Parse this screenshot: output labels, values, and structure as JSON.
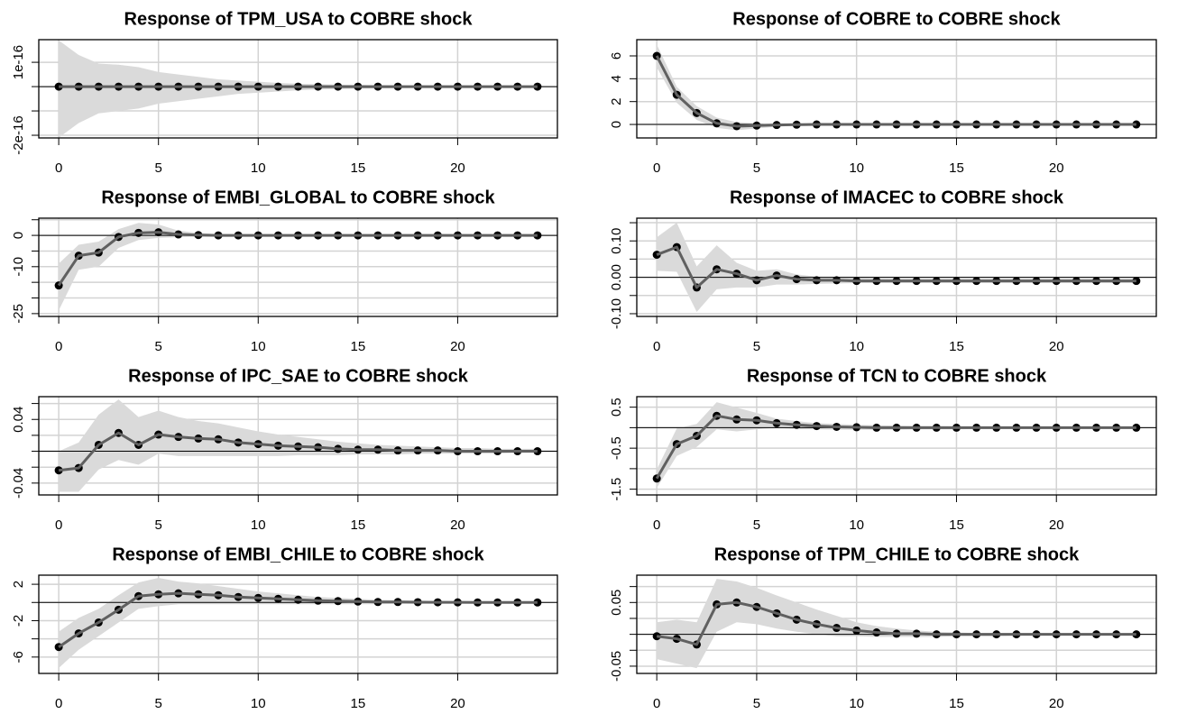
{
  "chart_data": [
    {
      "type": "line",
      "title": "Response of TPM_USA to COBRE shock",
      "x": [
        0,
        1,
        2,
        3,
        4,
        5,
        6,
        7,
        8,
        9,
        10,
        11,
        12,
        13,
        14,
        15,
        16,
        17,
        18,
        19,
        20,
        21,
        22,
        23,
        24
      ],
      "series": [
        {
          "color": "#606060",
          "point_color": "#000000",
          "values": [
            0,
            0,
            0,
            0,
            0,
            0,
            0,
            0,
            0,
            0,
            0,
            0,
            0,
            0,
            0,
            0,
            0,
            0,
            0,
            0,
            0,
            0,
            0,
            0,
            0
          ]
        }
      ],
      "upper": [
        1.9e-16,
        1.3e-16,
        9.5e-17,
        9e-17,
        8e-17,
        6e-17,
        5e-17,
        4e-17,
        3e-17,
        2.5e-17,
        2e-17,
        1.5e-17,
        1.2e-17,
        1e-17,
        8e-18,
        7e-18,
        6e-18,
        5e-18,
        4e-18,
        4e-18,
        3e-18,
        3e-18,
        3e-18,
        2e-18,
        2e-18
      ],
      "lower": [
        -2.1e-16,
        -1.5e-16,
        -1.1e-16,
        -1e-16,
        -9e-17,
        -7e-17,
        -6e-17,
        -5e-17,
        -4e-17,
        -3e-17,
        -2.5e-17,
        -2e-17,
        -1.5e-17,
        -1.2e-17,
        -1e-17,
        -8e-18,
        -7e-18,
        -6e-18,
        -5e-18,
        -4e-18,
        -4e-18,
        -3e-18,
        -3e-18,
        -3e-18,
        -2e-18
      ],
      "band_color": "#dadada",
      "hline": 0,
      "xlim": [
        -1,
        25
      ],
      "xticks": [
        0,
        5,
        10,
        15,
        20
      ],
      "ylim": [
        -2.11e-16,
        1.93e-16
      ],
      "yticks": [
        {
          "value": 1e-16,
          "label": "1e-16"
        },
        {
          "value": 0,
          "label": null
        },
        {
          "value": -1e-16,
          "label": null
        },
        {
          "value": -2e-16,
          "label": "-2e-16"
        }
      ],
      "grid": true
    },
    {
      "type": "line",
      "title": "Response of COBRE to COBRE shock",
      "x": [
        0,
        1,
        2,
        3,
        4,
        5,
        6,
        7,
        8,
        9,
        10,
        11,
        12,
        13,
        14,
        15,
        16,
        17,
        18,
        19,
        20,
        21,
        22,
        23,
        24
      ],
      "series": [
        {
          "color": "#606060",
          "point_color": "#000000",
          "values": [
            6,
            2.6,
            1.0,
            0.1,
            -0.15,
            -0.1,
            -0.05,
            -0.02,
            0,
            0,
            0,
            0,
            0,
            0,
            0,
            0,
            0,
            0,
            0,
            0,
            0,
            0,
            0,
            0,
            0
          ]
        }
      ],
      "upper": [
        7.0,
        3.3,
        1.6,
        0.6,
        0.2,
        0.1,
        0.05,
        0.05,
        0.03,
        0.02,
        0.02,
        0.01,
        0.01,
        0.01,
        0.01,
        0.01,
        0.01,
        0.01,
        0.01,
        0.01,
        0.01,
        0.01,
        0.01,
        0.01,
        0.01
      ],
      "lower": [
        5.0,
        1.9,
        0.4,
        -0.3,
        -0.5,
        -0.35,
        -0.2,
        -0.1,
        -0.06,
        -0.04,
        -0.03,
        -0.02,
        -0.02,
        -0.02,
        -0.01,
        -0.01,
        -0.01,
        -0.01,
        -0.01,
        -0.01,
        -0.01,
        -0.01,
        -0.01,
        -0.01,
        -0.01
      ],
      "band_color": "#dadada",
      "hline": 0,
      "xlim": [
        -1,
        25
      ],
      "xticks": [
        0,
        5,
        10,
        15,
        20
      ],
      "ylim": [
        -1.18,
        7.42
      ],
      "yticks": [
        0,
        2,
        4,
        6
      ],
      "grid": true
    },
    {
      "type": "line",
      "title": "Response of EMBI_GLOBAL to COBRE shock",
      "x": [
        0,
        1,
        2,
        3,
        4,
        5,
        6,
        7,
        8,
        9,
        10,
        11,
        12,
        13,
        14,
        15,
        16,
        17,
        18,
        19,
        20,
        21,
        22,
        23,
        24
      ],
      "series": [
        {
          "color": "#606060",
          "point_color": "#000000",
          "values": [
            -16,
            -6.5,
            -5.5,
            -0.5,
            0.8,
            1.0,
            0.3,
            0.1,
            0,
            0,
            0,
            0,
            0,
            0,
            0,
            0,
            0,
            0,
            0,
            0,
            0,
            0,
            0,
            0,
            0
          ]
        }
      ],
      "upper": [
        -9,
        -3,
        -2,
        2,
        4,
        3.5,
        1.5,
        0.8,
        0.4,
        0.3,
        0.2,
        0.2,
        0.1,
        0.1,
        0.1,
        0.1,
        0.1,
        0.1,
        0.1,
        0.1,
        0.1,
        0.1,
        0.1,
        0.1,
        0.1
      ],
      "lower": [
        -24,
        -11,
        -10,
        -4,
        -1.5,
        -0.8,
        -0.6,
        -0.4,
        -0.3,
        -0.2,
        -0.2,
        -0.1,
        -0.1,
        -0.1,
        -0.1,
        -0.1,
        -0.1,
        -0.1,
        -0.1,
        -0.1,
        -0.1,
        -0.1,
        -0.1,
        -0.1,
        -0.1
      ],
      "band_color": "#dadada",
      "hline": 0,
      "xlim": [
        -1,
        25
      ],
      "xticks": [
        0,
        5,
        10,
        15,
        20
      ],
      "ylim": [
        -25.9,
        5.5
      ],
      "yticks": [
        {
          "value": 5,
          "label": null
        },
        0,
        {
          "value": -5,
          "label": null
        },
        -10,
        {
          "value": -15,
          "label": null
        },
        {
          "value": -20,
          "label": null
        },
        -25
      ],
      "grid": true
    },
    {
      "type": "line",
      "title": "Response of IMACEC to COBRE shock",
      "x": [
        0,
        1,
        2,
        3,
        4,
        5,
        6,
        7,
        8,
        9,
        10,
        11,
        12,
        13,
        14,
        15,
        16,
        17,
        18,
        19,
        20,
        21,
        22,
        23,
        24
      ],
      "series": [
        {
          "color": "#606060",
          "point_color": "#000000",
          "values": [
            0.062,
            0.083,
            -0.028,
            0.022,
            0.01,
            -0.008,
            0.005,
            -0.005,
            -0.008,
            -0.008,
            -0.01,
            -0.01,
            -0.01,
            -0.01,
            -0.01,
            -0.01,
            -0.01,
            -0.01,
            -0.01,
            -0.01,
            -0.01,
            -0.01,
            -0.01,
            -0.01,
            -0.01
          ]
        }
      ],
      "upper": [
        0.11,
        0.15,
        0.03,
        0.088,
        0.04,
        0.018,
        0.022,
        0.008,
        0.002,
        0,
        -0.002,
        -0.003,
        -0.004,
        -0.004,
        -0.004,
        -0.004,
        -0.004,
        -0.004,
        -0.004,
        -0.004,
        -0.004,
        -0.004,
        -0.004,
        -0.004,
        -0.004
      ],
      "lower": [
        0.018,
        0.015,
        -0.095,
        -0.033,
        -0.028,
        -0.028,
        -0.02,
        -0.02,
        -0.018,
        -0.017,
        -0.016,
        -0.016,
        -0.016,
        -0.016,
        -0.016,
        -0.016,
        -0.016,
        -0.016,
        -0.016,
        -0.016,
        -0.016,
        -0.016,
        -0.016,
        -0.016,
        -0.016
      ],
      "band_color": "#dadada",
      "hline": 0,
      "xlim": [
        -1,
        25
      ],
      "xticks": [
        0,
        5,
        10,
        15,
        20
      ],
      "ylim": [
        -0.1075,
        0.1625
      ],
      "yticks": [
        {
          "value": 0.15,
          "label": null
        },
        {
          "value": 0.1,
          "label": "0.10"
        },
        {
          "value": 0.05,
          "label": null
        },
        {
          "value": 0,
          "label": "0.00"
        },
        {
          "value": -0.05,
          "label": null
        },
        {
          "value": -0.1,
          "label": "-0.10"
        }
      ],
      "grid": true
    },
    {
      "type": "line",
      "title": "Response of IPC_SAE to COBRE shock",
      "x": [
        0,
        1,
        2,
        3,
        4,
        5,
        6,
        7,
        8,
        9,
        10,
        11,
        12,
        13,
        14,
        15,
        16,
        17,
        18,
        19,
        20,
        21,
        22,
        23,
        24
      ],
      "series": [
        {
          "color": "#606060",
          "point_color": "#000000",
          "values": [
            -0.024,
            -0.021,
            0.008,
            0.023,
            0.008,
            0.021,
            0.018,
            0.016,
            0.015,
            0.011,
            0.009,
            0.007,
            0.006,
            0.005,
            0.003,
            0.002,
            0.002,
            0.001,
            0.001,
            0.001,
            0,
            0,
            0,
            0,
            0
          ]
        }
      ],
      "upper": [
        0,
        0.011,
        0.046,
        0.065,
        0.043,
        0.051,
        0.043,
        0.038,
        0.035,
        0.03,
        0.025,
        0.021,
        0.018,
        0.015,
        0.012,
        0.01,
        0.008,
        0.007,
        0.006,
        0.005,
        0.004,
        0.004,
        0.003,
        0.003,
        0.003
      ],
      "lower": [
        -0.051,
        -0.051,
        -0.023,
        -0.011,
        -0.017,
        -0.003,
        -0.006,
        -0.006,
        -0.006,
        -0.006,
        -0.006,
        -0.006,
        -0.005,
        -0.005,
        -0.005,
        -0.004,
        -0.004,
        -0.004,
        -0.003,
        -0.003,
        -0.003,
        -0.003,
        -0.003,
        -0.002,
        -0.002
      ],
      "band_color": "#dadada",
      "hline": 0,
      "xlim": [
        -1,
        25
      ],
      "xticks": [
        0,
        5,
        10,
        15,
        20
      ],
      "ylim": [
        -0.0549,
        0.0686
      ],
      "yticks": [
        {
          "value": 0.06,
          "label": null
        },
        0.04,
        {
          "value": 0.02,
          "label": null
        },
        {
          "value": 0,
          "label": null
        },
        {
          "value": -0.02,
          "label": null
        },
        -0.04
      ],
      "grid": true
    },
    {
      "type": "line",
      "title": "Response of TCN to COBRE shock",
      "x": [
        0,
        1,
        2,
        3,
        4,
        5,
        6,
        7,
        8,
        9,
        10,
        11,
        12,
        13,
        14,
        15,
        16,
        17,
        18,
        19,
        20,
        21,
        22,
        23,
        24
      ],
      "series": [
        {
          "color": "#606060",
          "point_color": "#000000",
          "values": [
            -1.24,
            -0.4,
            -0.2,
            0.29,
            0.2,
            0.18,
            0.11,
            0.07,
            0.04,
            0.02,
            0.01,
            0,
            0,
            0,
            0,
            0,
            0,
            0,
            0,
            0,
            0,
            0,
            0,
            0,
            0
          ]
        }
      ],
      "upper": [
        -1.02,
        -0.02,
        0.09,
        0.62,
        0.49,
        0.36,
        0.22,
        0.16,
        0.11,
        0.09,
        0.07,
        0.06,
        0.05,
        0.04,
        0.04,
        0.03,
        0.03,
        0.03,
        0.02,
        0.02,
        0.02,
        0.02,
        0.02,
        0.02,
        0.02
      ],
      "lower": [
        -1.47,
        -0.69,
        -0.47,
        -0.04,
        -0.09,
        -0.04,
        0,
        -0.04,
        -0.04,
        -0.05,
        -0.05,
        -0.05,
        -0.05,
        -0.04,
        -0.04,
        -0.04,
        -0.03,
        -0.03,
        -0.03,
        -0.03,
        -0.03,
        -0.02,
        -0.02,
        -0.02,
        -0.02
      ],
      "band_color": "#dadada",
      "hline": 0,
      "xlim": [
        -1,
        25
      ],
      "xticks": [
        0,
        5,
        10,
        15,
        20
      ],
      "ylim": [
        -1.64,
        0.756
      ],
      "yticks": [
        0.5,
        {
          "value": 0,
          "label": null
        },
        -0.5,
        {
          "value": -1,
          "label": null
        },
        -1.5
      ],
      "grid": true
    },
    {
      "type": "line",
      "title": "Response of EMBI_CHILE to COBRE shock",
      "x": [
        0,
        1,
        2,
        3,
        4,
        5,
        6,
        7,
        8,
        9,
        10,
        11,
        12,
        13,
        14,
        15,
        16,
        17,
        18,
        19,
        20,
        21,
        22,
        23,
        24
      ],
      "series": [
        {
          "color": "#606060",
          "point_color": "#000000",
          "values": [
            -4.9,
            -3.4,
            -2.2,
            -0.8,
            0.7,
            0.9,
            1.0,
            0.9,
            0.8,
            0.6,
            0.5,
            0.4,
            0.3,
            0.2,
            0.15,
            0.1,
            0.05,
            0.05,
            0.03,
            0.02,
            0.01,
            0,
            0,
            0,
            0
          ]
        }
      ],
      "upper": [
        -3.2,
        -1.7,
        -0.7,
        0.8,
        2.2,
        2.7,
        2.3,
        2.1,
        1.8,
        1.5,
        1.2,
        1.0,
        0.8,
        0.6,
        0.5,
        0.4,
        0.3,
        0.25,
        0.2,
        0.15,
        0.12,
        0.1,
        0.08,
        0.06,
        0.05
      ],
      "lower": [
        -7.2,
        -5.2,
        -3.7,
        -2.2,
        -0.7,
        -0.4,
        -0.2,
        -0.2,
        -0.2,
        -0.2,
        -0.2,
        -0.2,
        -0.2,
        -0.2,
        -0.2,
        -0.2,
        -0.2,
        -0.15,
        -0.15,
        -0.1,
        -0.1,
        -0.1,
        -0.08,
        -0.06,
        -0.05
      ],
      "band_color": "#dadada",
      "hline": 0,
      "xlim": [
        -1,
        25
      ],
      "xticks": [
        0,
        5,
        10,
        15,
        20
      ],
      "ylim": [
        -7.8,
        3
      ],
      "yticks": [
        2,
        {
          "value": 0,
          "label": null
        },
        -2,
        {
          "value": -4,
          "label": null
        },
        -6
      ],
      "grid": true
    },
    {
      "type": "line",
      "title": "Response of TPM_CHILE to COBRE shock",
      "x": [
        0,
        1,
        2,
        3,
        4,
        5,
        6,
        7,
        8,
        9,
        10,
        11,
        12,
        13,
        14,
        15,
        16,
        17,
        18,
        19,
        20,
        21,
        22,
        23,
        24
      ],
      "series": [
        {
          "color": "#606060",
          "point_color": "#000000",
          "values": [
            -0.003,
            -0.007,
            -0.016,
            0.047,
            0.05,
            0.043,
            0.033,
            0.023,
            0.016,
            0.01,
            0.006,
            0.003,
            0.001,
            0.001,
            0,
            0,
            0,
            0,
            0,
            0,
            0,
            0,
            0,
            0,
            0
          ]
        }
      ],
      "upper": [
        0.019,
        0.023,
        0.019,
        0.087,
        0.083,
        0.073,
        0.061,
        0.05,
        0.039,
        0.029,
        0.019,
        0.013,
        0.009,
        0.006,
        0.004,
        0.003,
        0.002,
        0.002,
        0.002,
        0.001,
        0.001,
        0.001,
        0.001,
        0.001,
        0.001
      ],
      "lower": [
        -0.039,
        -0.046,
        -0.053,
        0.004,
        0.019,
        0.016,
        0.009,
        0.004,
        0,
        -0.003,
        -0.003,
        -0.004,
        -0.004,
        -0.004,
        -0.004,
        -0.003,
        -0.003,
        -0.003,
        -0.002,
        -0.002,
        -0.002,
        -0.002,
        -0.002,
        -0.001,
        -0.001
      ],
      "band_color": "#dadada",
      "hline": 0,
      "xlim": [
        -1,
        25
      ],
      "xticks": [
        0,
        5,
        10,
        15,
        20
      ],
      "ylim": [
        -0.0614,
        0.0929
      ],
      "yticks": [
        {
          "value": 0.075,
          "label": null
        },
        0.05,
        {
          "value": 0.025,
          "label": null
        },
        {
          "value": 0,
          "label": null
        },
        {
          "value": -0.025,
          "label": null
        },
        -0.05
      ],
      "grid": true
    }
  ]
}
